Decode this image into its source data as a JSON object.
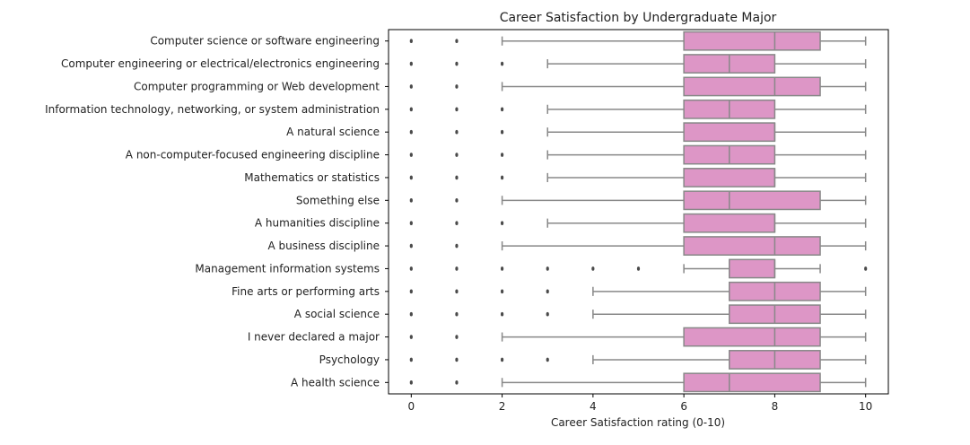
{
  "chart_data": {
    "type": "box",
    "orientation": "horizontal",
    "title": "Career Satisfaction by Undergraduate Major",
    "xlabel": "Career Satisfaction rating (0-10)",
    "ylabel": "",
    "xlim": [
      -0.5,
      10.5
    ],
    "xticks": [
      0,
      2,
      4,
      6,
      8,
      10
    ],
    "grid": false,
    "box_color": "#dd96c6",
    "line_color": "#888888",
    "categories": [
      "Computer science or software engineering",
      "Computer engineering or electrical/electronics engineering",
      "Computer programming or Web development",
      "Information technology, networking, or system administration",
      "A natural science",
      "A non-computer-focused engineering discipline",
      "Mathematics or statistics",
      "Something else",
      "A humanities discipline",
      "A business discipline",
      "Management information systems",
      "Fine arts or performing arts",
      "A social science",
      "I never declared a major",
      "Psychology",
      "A health science"
    ],
    "boxes": [
      {
        "whislo": 2,
        "q1": 6,
        "med": 8,
        "q3": 9,
        "whishi": 10,
        "fliers": [
          0,
          1
        ]
      },
      {
        "whislo": 3,
        "q1": 6,
        "med": 7,
        "q3": 8,
        "whishi": 10,
        "fliers": [
          0,
          1,
          2
        ]
      },
      {
        "whislo": 2,
        "q1": 6,
        "med": 8,
        "q3": 9,
        "whishi": 10,
        "fliers": [
          0,
          1
        ]
      },
      {
        "whislo": 3,
        "q1": 6,
        "med": 7,
        "q3": 8,
        "whishi": 10,
        "fliers": [
          0,
          1,
          2
        ]
      },
      {
        "whislo": 3,
        "q1": 6,
        "med": 8,
        "q3": 8,
        "whishi": 10,
        "fliers": [
          0,
          1,
          2
        ]
      },
      {
        "whislo": 3,
        "q1": 6,
        "med": 7,
        "q3": 8,
        "whishi": 10,
        "fliers": [
          0,
          1,
          2
        ]
      },
      {
        "whislo": 3,
        "q1": 6,
        "med": 8,
        "q3": 8,
        "whishi": 10,
        "fliers": [
          0,
          1,
          2
        ]
      },
      {
        "whislo": 2,
        "q1": 6,
        "med": 7,
        "q3": 9,
        "whishi": 10,
        "fliers": [
          0,
          1
        ]
      },
      {
        "whislo": 3,
        "q1": 6,
        "med": 8,
        "q3": 8,
        "whishi": 10,
        "fliers": [
          0,
          1,
          2
        ]
      },
      {
        "whislo": 2,
        "q1": 6,
        "med": 8,
        "q3": 9,
        "whishi": 10,
        "fliers": [
          0,
          1
        ]
      },
      {
        "whislo": 6,
        "q1": 7,
        "med": 8,
        "q3": 8,
        "whishi": 9,
        "fliers": [
          0,
          1,
          2,
          3,
          4,
          5,
          10
        ]
      },
      {
        "whislo": 4,
        "q1": 7,
        "med": 8,
        "q3": 9,
        "whishi": 10,
        "fliers": [
          0,
          1,
          2,
          3
        ]
      },
      {
        "whislo": 4,
        "q1": 7,
        "med": 8,
        "q3": 9,
        "whishi": 10,
        "fliers": [
          0,
          1,
          2,
          3
        ]
      },
      {
        "whislo": 2,
        "q1": 6,
        "med": 8,
        "q3": 9,
        "whishi": 10,
        "fliers": [
          0,
          1
        ]
      },
      {
        "whislo": 4,
        "q1": 7,
        "med": 8,
        "q3": 9,
        "whishi": 10,
        "fliers": [
          0,
          1,
          2,
          3
        ]
      },
      {
        "whislo": 2,
        "q1": 6,
        "med": 7,
        "q3": 9,
        "whishi": 10,
        "fliers": [
          0,
          1
        ]
      }
    ]
  }
}
